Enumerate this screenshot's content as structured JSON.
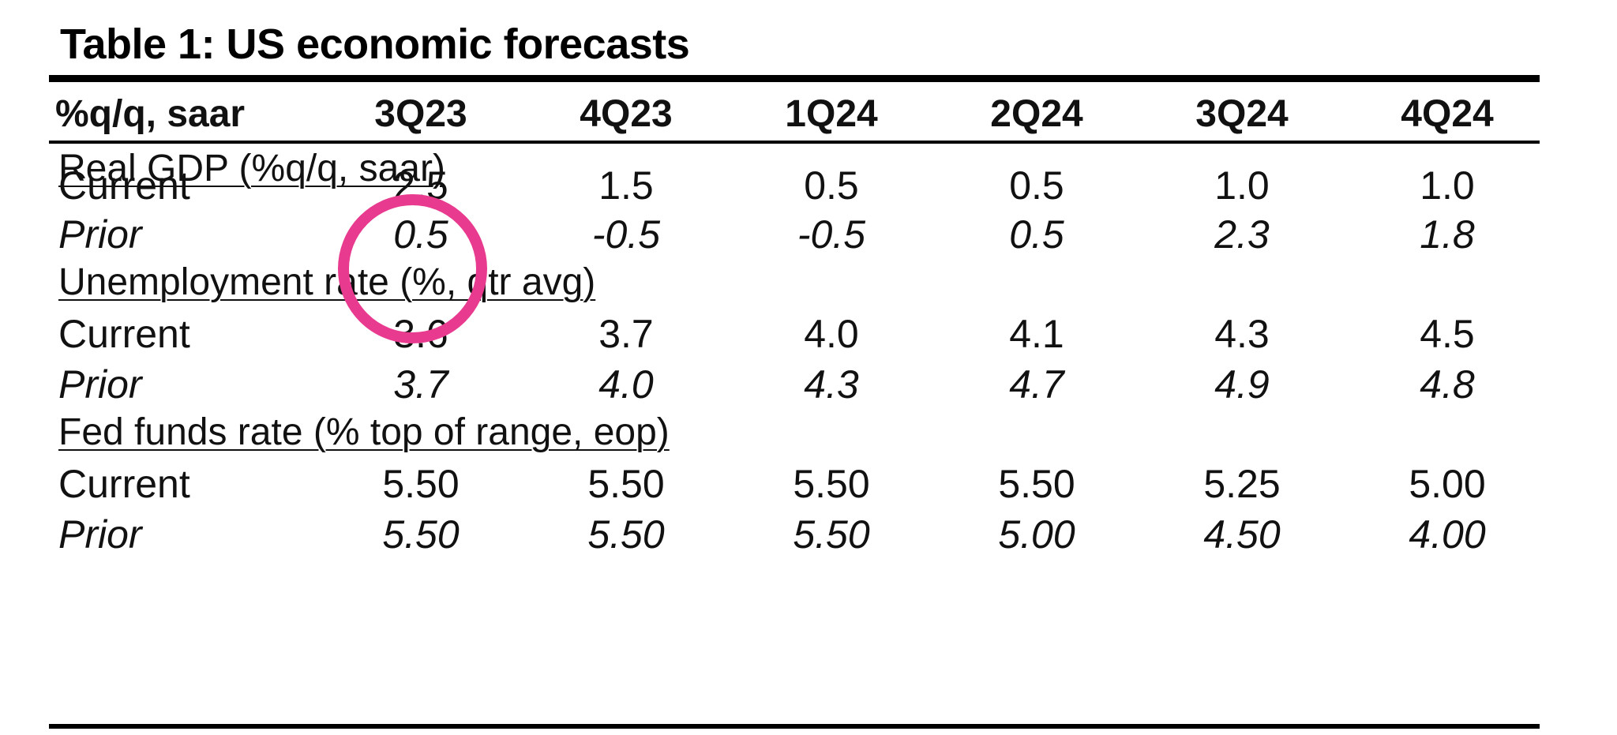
{
  "title": "Table 1: US economic forecasts",
  "header": {
    "label": "%q/q, saar",
    "columns": [
      "3Q23",
      "4Q23",
      "1Q24",
      "2Q24",
      "3Q24",
      "4Q24"
    ]
  },
  "sections": [
    {
      "title": "Real GDP (%q/q, saar)",
      "current_label": "Current",
      "prior_label": "Prior",
      "current": [
        "2.5",
        "1.5",
        "0.5",
        "0.5",
        "1.0",
        "1.0"
      ],
      "prior": [
        "0.5",
        "-0.5",
        "-0.5",
        "0.5",
        "2.3",
        "1.8"
      ]
    },
    {
      "title": "Unemployment rate (%, qtr avg)",
      "current_label": "Current",
      "prior_label": "Prior",
      "current": [
        "3.6",
        "3.7",
        "4.0",
        "4.1",
        "4.3",
        "4.5"
      ],
      "prior": [
        "3.7",
        "4.0",
        "4.3",
        "4.7",
        "4.9",
        "4.8"
      ]
    },
    {
      "title": "Fed funds rate (% top of range, eop)",
      "current_label": "Current",
      "prior_label": "Prior",
      "current": [
        "5.50",
        "5.50",
        "5.50",
        "5.50",
        "5.25",
        "5.00"
      ],
      "prior": [
        "5.50",
        "5.50",
        "5.50",
        "5.00",
        "4.50",
        "4.00"
      ]
    }
  ],
  "colors": {
    "text": "#111111",
    "rule": "#000000",
    "highlight_circle": "#e83a8e"
  }
}
